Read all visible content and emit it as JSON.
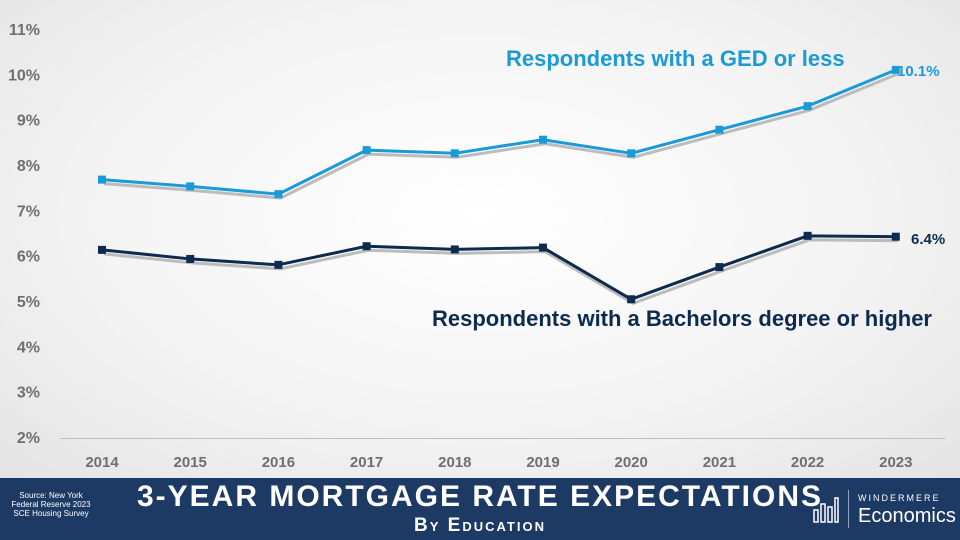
{
  "chart_data": {
    "type": "line",
    "categories": [
      "2014",
      "2015",
      "2016",
      "2017",
      "2018",
      "2019",
      "2020",
      "2021",
      "2022",
      "2023"
    ],
    "y_ticks": [
      "2%",
      "3%",
      "4%",
      "5%",
      "6%",
      "7%",
      "8%",
      "9%",
      "10%",
      "11%"
    ],
    "ylim": [
      2,
      11
    ],
    "grid": false,
    "series": [
      {
        "name": "Respondents with a GED or less",
        "color": "#1a9ad6",
        "values": [
          7.7,
          7.55,
          7.38,
          8.35,
          8.28,
          8.58,
          8.28,
          8.8,
          9.32,
          10.12
        ],
        "end_label": "10.1%"
      },
      {
        "name": "Respondents with a Bachelors degree or higher",
        "color": "#0d2b4f",
        "values": [
          6.15,
          5.95,
          5.82,
          6.23,
          6.16,
          6.2,
          5.06,
          5.77,
          6.46,
          6.44
        ],
        "end_label": "6.4%"
      }
    ]
  },
  "footer": {
    "source": "Source: New York Federal Reserve 2023 SCE Housing Survey",
    "title": "3-YEAR MORTGAGE RATE EXPECTATIONS",
    "subtitle": "By Education",
    "brand_top": "WINDERMERE",
    "brand_bottom": "Economics"
  }
}
